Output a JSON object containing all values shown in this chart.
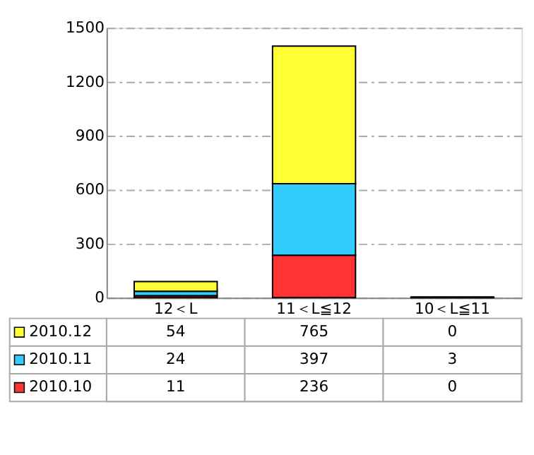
{
  "chart_data": {
    "type": "bar",
    "stacked": true,
    "categories": [
      "12＜L",
      "11＜L≦12",
      "10＜L≦11"
    ],
    "series": [
      {
        "name": "2010.10",
        "color": "#ff3333",
        "values": [
          11,
          236,
          0
        ]
      },
      {
        "name": "2010.11",
        "color": "#33ccff",
        "values": [
          24,
          397,
          3
        ]
      },
      {
        "name": "2010.12",
        "color": "#ffff33",
        "values": [
          54,
          765,
          0
        ]
      }
    ],
    "ylim": [
      0,
      1500
    ],
    "yticks": [
      0,
      300,
      600,
      900,
      1200,
      1500
    ],
    "grid": "y",
    "data_labels": true,
    "legend": "bottom"
  }
}
